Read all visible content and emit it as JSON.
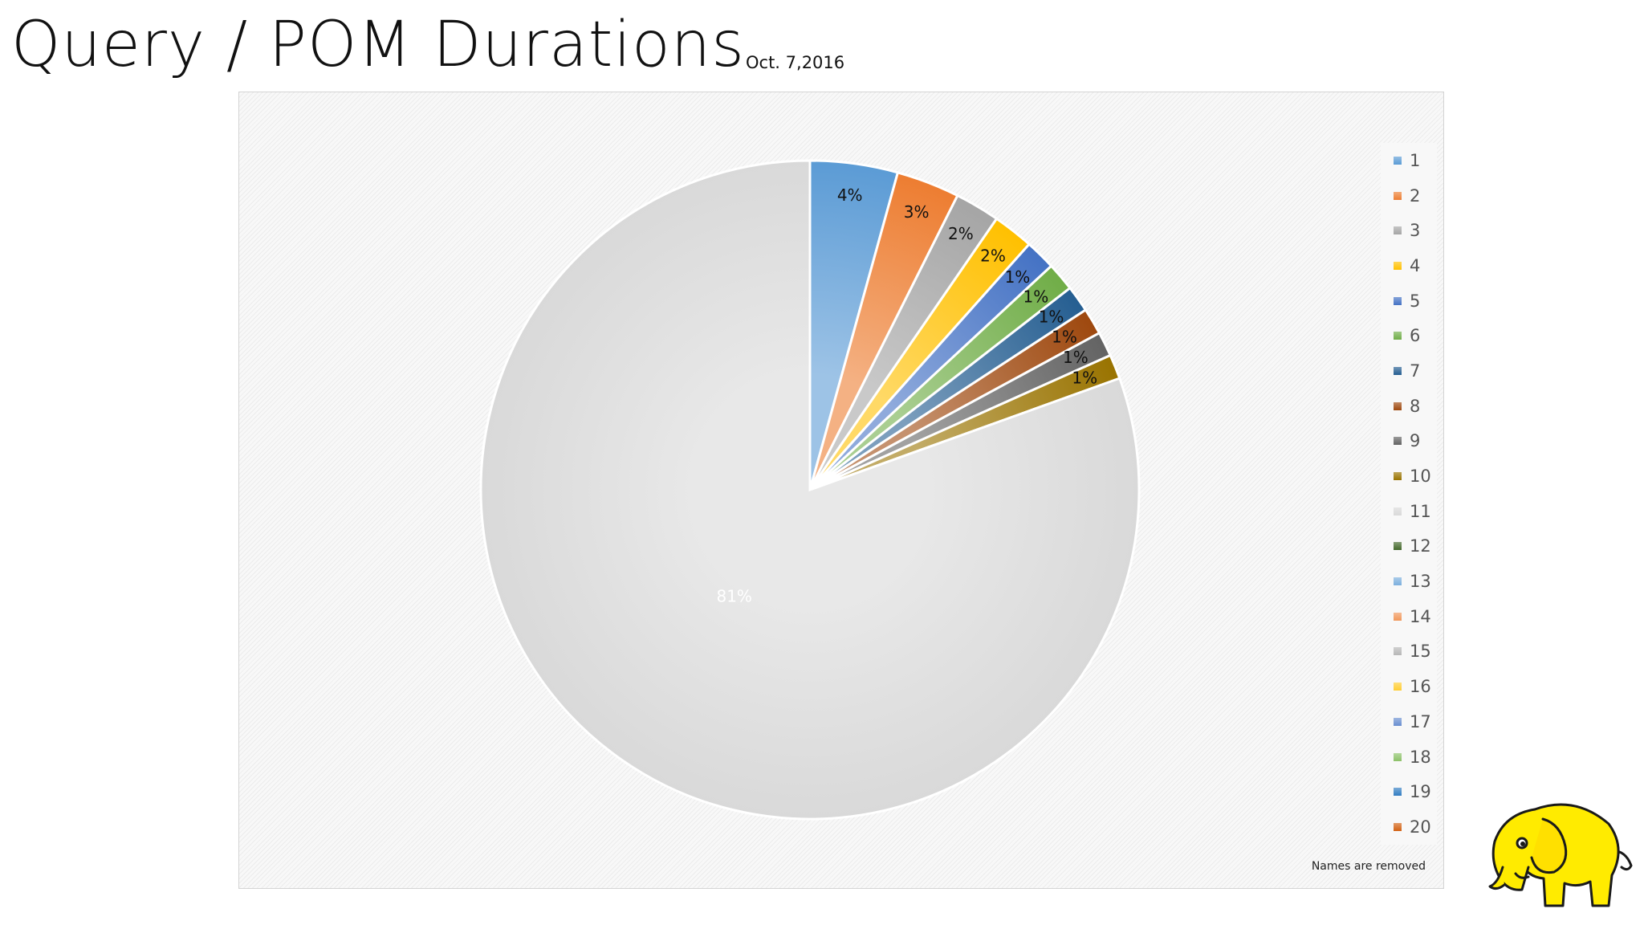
{
  "slide": {
    "title": "Query / POM Durations",
    "date": "Oct. 7,2016"
  },
  "colors": {
    "background": "#ffffff",
    "chart_frame": "#f7f7f7"
  },
  "chart_data": {
    "type": "pie",
    "note": "Names are removed",
    "start_angle_deg": 0,
    "direction": "clockwise",
    "slices": [
      {
        "label": "1",
        "value": 4.3,
        "data_label": "4%",
        "color": "#5b9bd5"
      },
      {
        "label": "2",
        "value": 3.1,
        "data_label": "3%",
        "color": "#ed7d31"
      },
      {
        "label": "3",
        "value": 2.2,
        "data_label": "2%",
        "color": "#a5a5a5"
      },
      {
        "label": "4",
        "value": 2.0,
        "data_label": "2%",
        "color": "#ffc000"
      },
      {
        "label": "5",
        "value": 1.5,
        "data_label": "1%",
        "color": "#4472c4"
      },
      {
        "label": "6",
        "value": 1.4,
        "data_label": "1%",
        "color": "#70ad47"
      },
      {
        "label": "7",
        "value": 1.3,
        "data_label": "1%",
        "color": "#255e91"
      },
      {
        "label": "8",
        "value": 1.3,
        "data_label": "1%",
        "color": "#9e480e"
      },
      {
        "label": "9",
        "value": 1.2,
        "data_label": "1%",
        "color": "#636363"
      },
      {
        "label": "10",
        "value": 1.2,
        "data_label": "1%",
        "color": "#997300"
      },
      {
        "label": "11",
        "value": 80.5,
        "data_label": "81%",
        "color": "#d9d9d9"
      },
      {
        "label": "12",
        "value": 0,
        "data_label": "",
        "color": "#43682b"
      },
      {
        "label": "13",
        "value": 0,
        "data_label": "",
        "color": "#7cafdd"
      },
      {
        "label": "14",
        "value": 0,
        "data_label": "",
        "color": "#f1975a"
      },
      {
        "label": "15",
        "value": 0,
        "data_label": "",
        "color": "#b7b7b7"
      },
      {
        "label": "16",
        "value": 0,
        "data_label": "",
        "color": "#ffcd33"
      },
      {
        "label": "17",
        "value": 0,
        "data_label": "",
        "color": "#698ed0"
      },
      {
        "label": "18",
        "value": 0,
        "data_label": "",
        "color": "#8cc168"
      },
      {
        "label": "19",
        "value": 0,
        "data_label": "",
        "color": "#327dc2"
      },
      {
        "label": "20",
        "value": 0,
        "data_label": "",
        "color": "#d26012"
      }
    ]
  },
  "logo": {
    "name": "yellow-elephant-logo",
    "color": "#ffeb00"
  }
}
